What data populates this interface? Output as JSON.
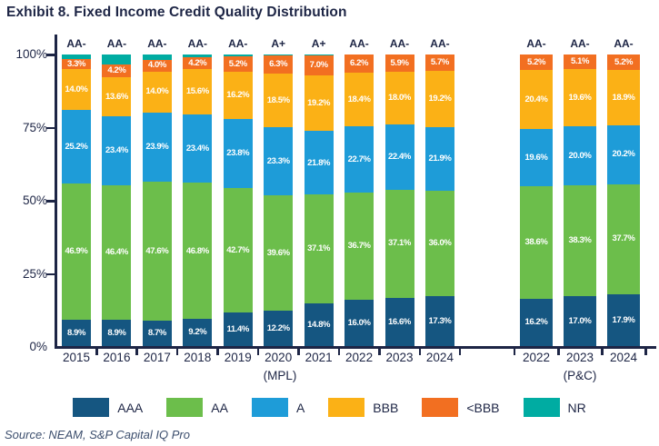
{
  "title": "Exhibit 8. Fixed Income Credit Quality Distribution",
  "source": "Source: NEAM, S&P Capital IQ Pro",
  "y_axis": {
    "ticks": [
      "100%",
      "75%",
      "50%",
      "25%",
      "0%"
    ]
  },
  "legend": [
    {
      "label": "AAA",
      "color": "#155681"
    },
    {
      "label": "AA",
      "color": "#6cbe4b"
    },
    {
      "label": "A",
      "color": "#1e9cd8"
    },
    {
      "label": "BBB",
      "color": "#fbb116"
    },
    {
      "label": "<BBB",
      "color": "#f26f21"
    },
    {
      "label": "NR",
      "color": "#00aca2"
    }
  ],
  "chart_data": {
    "type": "bar",
    "stacked": true,
    "unit": "%",
    "ylim": [
      0,
      100
    ],
    "title": "Exhibit 8. Fixed Income Credit Quality Distribution",
    "series_order": [
      "AAA",
      "AA",
      "A",
      "BBB",
      "<BBB",
      "NR"
    ],
    "series_colors": {
      "AAA": "#155681",
      "AA": "#6cbe4b",
      "A": "#1e9cd8",
      "BBB": "#fbb116",
      "<BBB": "#f26f21",
      "NR": "#00aca2"
    },
    "groups": [
      {
        "label": "(MPL)",
        "categories": [
          "2015",
          "2016",
          "2017",
          "2018",
          "2019",
          "2020",
          "2021",
          "2022",
          "2023",
          "2024"
        ],
        "top_labels": [
          "AA-",
          "AA-",
          "AA-",
          "AA-",
          "AA-",
          "A+",
          "A+",
          "AA-",
          "AA-",
          "AA-"
        ],
        "series": [
          {
            "name": "AAA",
            "values": [
              8.9,
              8.9,
              8.7,
              9.2,
              11.4,
              12.2,
              14.8,
              16.0,
              16.6,
              17.3
            ]
          },
          {
            "name": "AA",
            "values": [
              46.9,
              46.4,
              47.6,
              46.8,
              42.7,
              39.6,
              37.1,
              36.7,
              37.1,
              36.0
            ]
          },
          {
            "name": "A",
            "values": [
              25.2,
              23.4,
              23.9,
              23.4,
              23.8,
              23.3,
              21.8,
              22.7,
              22.4,
              21.9
            ]
          },
          {
            "name": "BBB",
            "values": [
              14.0,
              13.6,
              14.0,
              15.6,
              16.2,
              18.5,
              19.2,
              18.4,
              18.0,
              19.2
            ]
          },
          {
            "name": "<BBB",
            "values": [
              3.3,
              4.2,
              4.0,
              4.2,
              5.2,
              6.3,
              7.0,
              6.2,
              5.9,
              5.7
            ]
          },
          {
            "name": "NR",
            "values": [
              1.7,
              3.5,
              1.8,
              0.8,
              0.7,
              0.1,
              0.1,
              0,
              0,
              0
            ],
            "labels_hidden": true
          }
        ]
      },
      {
        "label": "(P&C)",
        "categories": [
          "2022",
          "2023",
          "2024"
        ],
        "top_labels": [
          "AA-",
          "AA-",
          "AA-"
        ],
        "series": [
          {
            "name": "AAA",
            "values": [
              16.2,
              17.0,
              17.9
            ]
          },
          {
            "name": "AA",
            "values": [
              38.6,
              38.3,
              37.7
            ]
          },
          {
            "name": "A",
            "values": [
              19.6,
              20.0,
              20.2
            ]
          },
          {
            "name": "BBB",
            "values": [
              20.4,
              19.6,
              18.9
            ]
          },
          {
            "name": "<BBB",
            "values": [
              5.2,
              5.1,
              5.2
            ]
          },
          {
            "name": "NR",
            "values": [
              0,
              0,
              0
            ],
            "labels_hidden": true
          }
        ]
      }
    ]
  }
}
